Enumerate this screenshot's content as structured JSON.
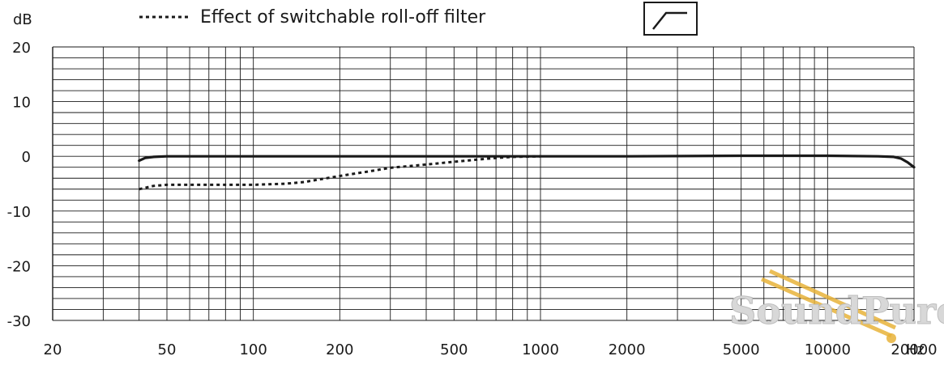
{
  "chart_data": {
    "type": "line",
    "title": "",
    "xlabel": "Hz",
    "ylabel": "dB",
    "x_scale": "log",
    "xlim": [
      20,
      20000
    ],
    "ylim": [
      -30,
      20
    ],
    "grid": true,
    "x_ticks": [
      20,
      50,
      100,
      200,
      500,
      1000,
      2000,
      5000,
      10000,
      20000
    ],
    "x_tick_labels": [
      "20",
      "50",
      "100",
      "200",
      "500",
      "1000",
      "2000",
      "5000",
      "10000",
      "20000"
    ],
    "y_ticks": [
      20,
      10,
      0,
      -10,
      -20,
      -30
    ],
    "y_tick_labels": [
      "20",
      "10",
      "0",
      "-10",
      "-20",
      "-30"
    ],
    "legend": {
      "placement": "top",
      "label": "Effect of switchable roll-off filter",
      "style": "dotted"
    },
    "series": [
      {
        "style": "solid",
        "color": "#1a1a1a",
        "x": [
          40,
          42,
          45,
          50,
          60,
          100,
          200,
          500,
          1000,
          2000,
          5000,
          10000,
          15000,
          17000,
          18000,
          19000,
          20000
        ],
        "y": [
          -0.8,
          -0.3,
          -0.1,
          0,
          0,
          0,
          0,
          0,
          0,
          0,
          0.1,
          0.1,
          0,
          -0.1,
          -0.4,
          -1.1,
          -2
        ]
      },
      {
        "name": "Effect of switchable roll-off filter",
        "style": "dotted",
        "color": "#1a1a1a",
        "x": [
          40,
          45,
          50,
          60,
          80,
          100,
          130,
          150,
          200,
          250,
          300,
          400,
          500,
          600,
          700,
          800,
          1000
        ],
        "y": [
          -6,
          -5.4,
          -5.2,
          -5.2,
          -5.2,
          -5.2,
          -5.0,
          -4.7,
          -3.6,
          -2.8,
          -2.1,
          -1.5,
          -1.0,
          -0.6,
          -0.3,
          -0.1,
          0
        ]
      }
    ]
  },
  "watermark": {
    "text": "SoundPure"
  },
  "icon": {
    "name": "high-pass-filter-icon"
  },
  "colors": {
    "line": "#1a1a1a",
    "grid": "#1a1a1a",
    "background": "#ffffff",
    "watermark": "#d8d8d8",
    "watermark_accent": "#e8b33a"
  }
}
